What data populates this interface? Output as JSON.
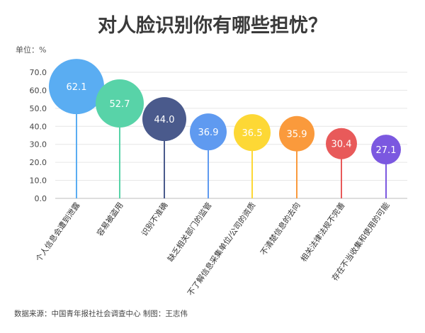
{
  "chart_data": {
    "type": "lollipop",
    "title": "对人脸识别你有哪些担忧？",
    "unit_label": "单位：%",
    "ylim": [
      0,
      70
    ],
    "yticks": [
      "0.0",
      "10.0",
      "20.0",
      "30.0",
      "40.0",
      "50.0",
      "60.0",
      "70.0"
    ],
    "grid": true,
    "categories": [
      "个人信息会遭到泄露",
      "容易被盗用",
      "识别不准确",
      "缺乏相关部门的监管",
      "不了解信息采集单位/公司的资质",
      "不清楚信息的去向",
      "相关法律法规不完善",
      "存在不当收集和使用的可能"
    ],
    "values": [
      62.1,
      52.7,
      44.0,
      36.9,
      36.5,
      35.9,
      30.4,
      27.1
    ],
    "value_labels": [
      "62.1",
      "52.7",
      "44.0",
      "36.9",
      "36.5",
      "35.9",
      "30.4",
      "27.1"
    ],
    "colors": [
      "#5aadf2",
      "#58d3a8",
      "#4a5a8c",
      "#5f9af0",
      "#fdd835",
      "#fa9a3c",
      "#e85a5a",
      "#7b58e0"
    ],
    "source": "数据来源：中国青年报社社会调查中心 制图：王志伟"
  }
}
